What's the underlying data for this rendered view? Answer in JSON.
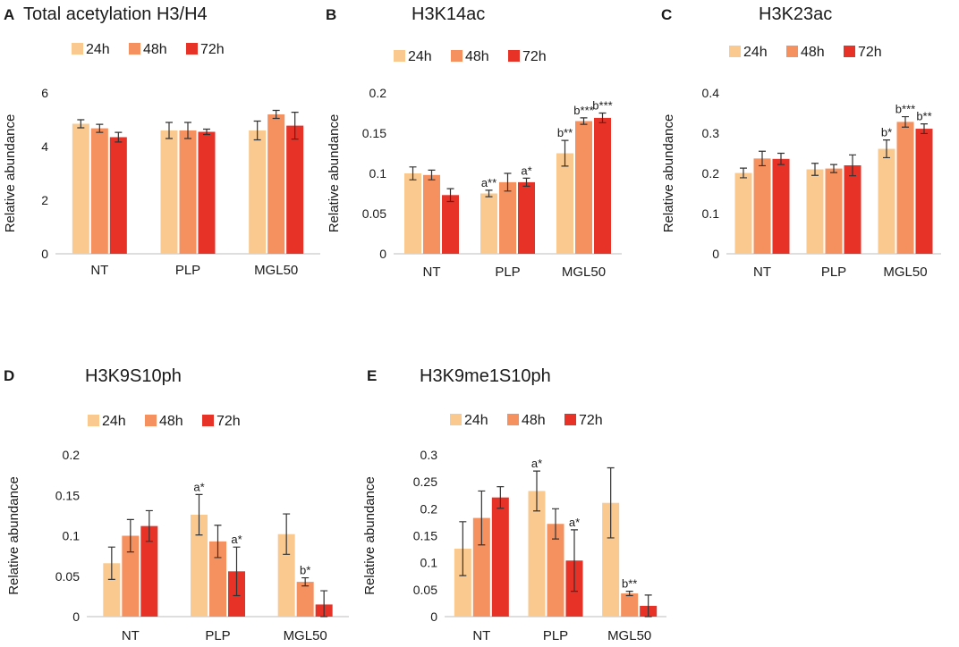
{
  "series_colors": {
    "24h": "#FAC98F",
    "48h": "#F4915E",
    "72h": "#E63227"
  },
  "chart_data": [
    {
      "type": "bar",
      "panel": "A",
      "title": "Total acetylation H3/H4",
      "categories": [
        "NT",
        "PLP",
        "MGL50"
      ],
      "ylabel": "Relative abundance",
      "ylim": [
        0,
        6
      ],
      "yticks": [
        "0",
        "2",
        "4",
        "6"
      ],
      "series": [
        {
          "name": "24h",
          "values": [
            4.85,
            4.6,
            4.6
          ],
          "err": [
            0.15,
            0.3,
            0.35
          ],
          "labels": [
            "",
            "",
            ""
          ]
        },
        {
          "name": "48h",
          "values": [
            4.68,
            4.6,
            5.2
          ],
          "err": [
            0.15,
            0.3,
            0.15
          ],
          "labels": [
            "",
            "",
            ""
          ]
        },
        {
          "name": "72h",
          "values": [
            4.35,
            4.55,
            4.78
          ],
          "err": [
            0.18,
            0.1,
            0.5
          ],
          "labels": [
            "",
            "",
            ""
          ]
        }
      ]
    },
    {
      "type": "bar",
      "panel": "B",
      "title": "H3K14ac",
      "categories": [
        "NT",
        "PLP",
        "MGL50"
      ],
      "ylabel": "Relative abundance",
      "ylim": [
        0,
        0.2
      ],
      "yticks": [
        "0",
        "0.05",
        "0.1",
        "0.15",
        "0.2"
      ],
      "series": [
        {
          "name": "24h",
          "values": [
            0.1,
            0.075,
            0.125
          ],
          "err": [
            0.008,
            0.004,
            0.016
          ],
          "labels": [
            "",
            "a**",
            "b**"
          ]
        },
        {
          "name": "48h",
          "values": [
            0.098,
            0.089,
            0.165
          ],
          "err": [
            0.006,
            0.011,
            0.004
          ],
          "labels": [
            "",
            "",
            "b***"
          ]
        },
        {
          "name": "72h",
          "values": [
            0.073,
            0.089,
            0.169
          ],
          "err": [
            0.008,
            0.005,
            0.006
          ],
          "labels": [
            "",
            "a*",
            "b***"
          ]
        }
      ]
    },
    {
      "type": "bar",
      "panel": "C",
      "title": "H3K23ac",
      "categories": [
        "NT",
        "PLP",
        "MGL50"
      ],
      "ylabel": "Relative abundance",
      "ylim": [
        0,
        0.4
      ],
      "yticks": [
        "0",
        "0.1",
        "0.2",
        "0.3",
        "0.4"
      ],
      "series": [
        {
          "name": "24h",
          "values": [
            0.201,
            0.21,
            0.261
          ],
          "err": [
            0.012,
            0.015,
            0.022
          ],
          "labels": [
            "",
            "",
            "b*"
          ]
        },
        {
          "name": "48h",
          "values": [
            0.237,
            0.212,
            0.328
          ],
          "err": [
            0.018,
            0.01,
            0.013
          ],
          "labels": [
            "",
            "",
            "b***"
          ]
        },
        {
          "name": "72h",
          "values": [
            0.236,
            0.22,
            0.311
          ],
          "err": [
            0.014,
            0.026,
            0.012
          ],
          "labels": [
            "",
            "",
            "b**"
          ]
        }
      ]
    },
    {
      "type": "bar",
      "panel": "D",
      "title": "H3K9S10ph",
      "categories": [
        "NT",
        "PLP",
        "MGL50"
      ],
      "ylabel": "Relative abundance",
      "ylim": [
        0,
        0.2
      ],
      "yticks": [
        "0",
        "0.05",
        "0.1",
        "0.15",
        "0.2"
      ],
      "series": [
        {
          "name": "24h",
          "values": [
            0.066,
            0.126,
            0.102
          ],
          "err": [
            0.02,
            0.025,
            0.025
          ],
          "labels": [
            "",
            "a*",
            ""
          ]
        },
        {
          "name": "48h",
          "values": [
            0.1,
            0.093,
            0.043
          ],
          "err": [
            0.02,
            0.02,
            0.005
          ],
          "labels": [
            "",
            "",
            "b*"
          ]
        },
        {
          "name": "72h",
          "values": [
            0.112,
            0.056,
            0.015
          ],
          "err": [
            0.019,
            0.03,
            0.017
          ],
          "labels": [
            "",
            "a*",
            ""
          ]
        }
      ]
    },
    {
      "type": "bar",
      "panel": "E",
      "title": "H3K9me1S10ph",
      "categories": [
        "NT",
        "PLP",
        "MGL50"
      ],
      "ylabel": "Relative abundance",
      "ylim": [
        0,
        0.3
      ],
      "yticks": [
        "0",
        "0.05",
        "0.1",
        "0.15",
        "0.2",
        "0.25",
        "0.3"
      ],
      "series": [
        {
          "name": "24h",
          "values": [
            0.126,
            0.233,
            0.211
          ],
          "err": [
            0.05,
            0.037,
            0.065
          ],
          "labels": [
            "",
            "a*",
            ""
          ]
        },
        {
          "name": "48h",
          "values": [
            0.183,
            0.172,
            0.043
          ],
          "err": [
            0.05,
            0.028,
            0.004
          ],
          "labels": [
            "",
            "",
            "b**"
          ]
        },
        {
          "name": "72h",
          "values": [
            0.221,
            0.104,
            0.02
          ],
          "err": [
            0.02,
            0.057,
            0.02
          ],
          "labels": [
            "",
            "a*",
            ""
          ]
        }
      ]
    }
  ]
}
